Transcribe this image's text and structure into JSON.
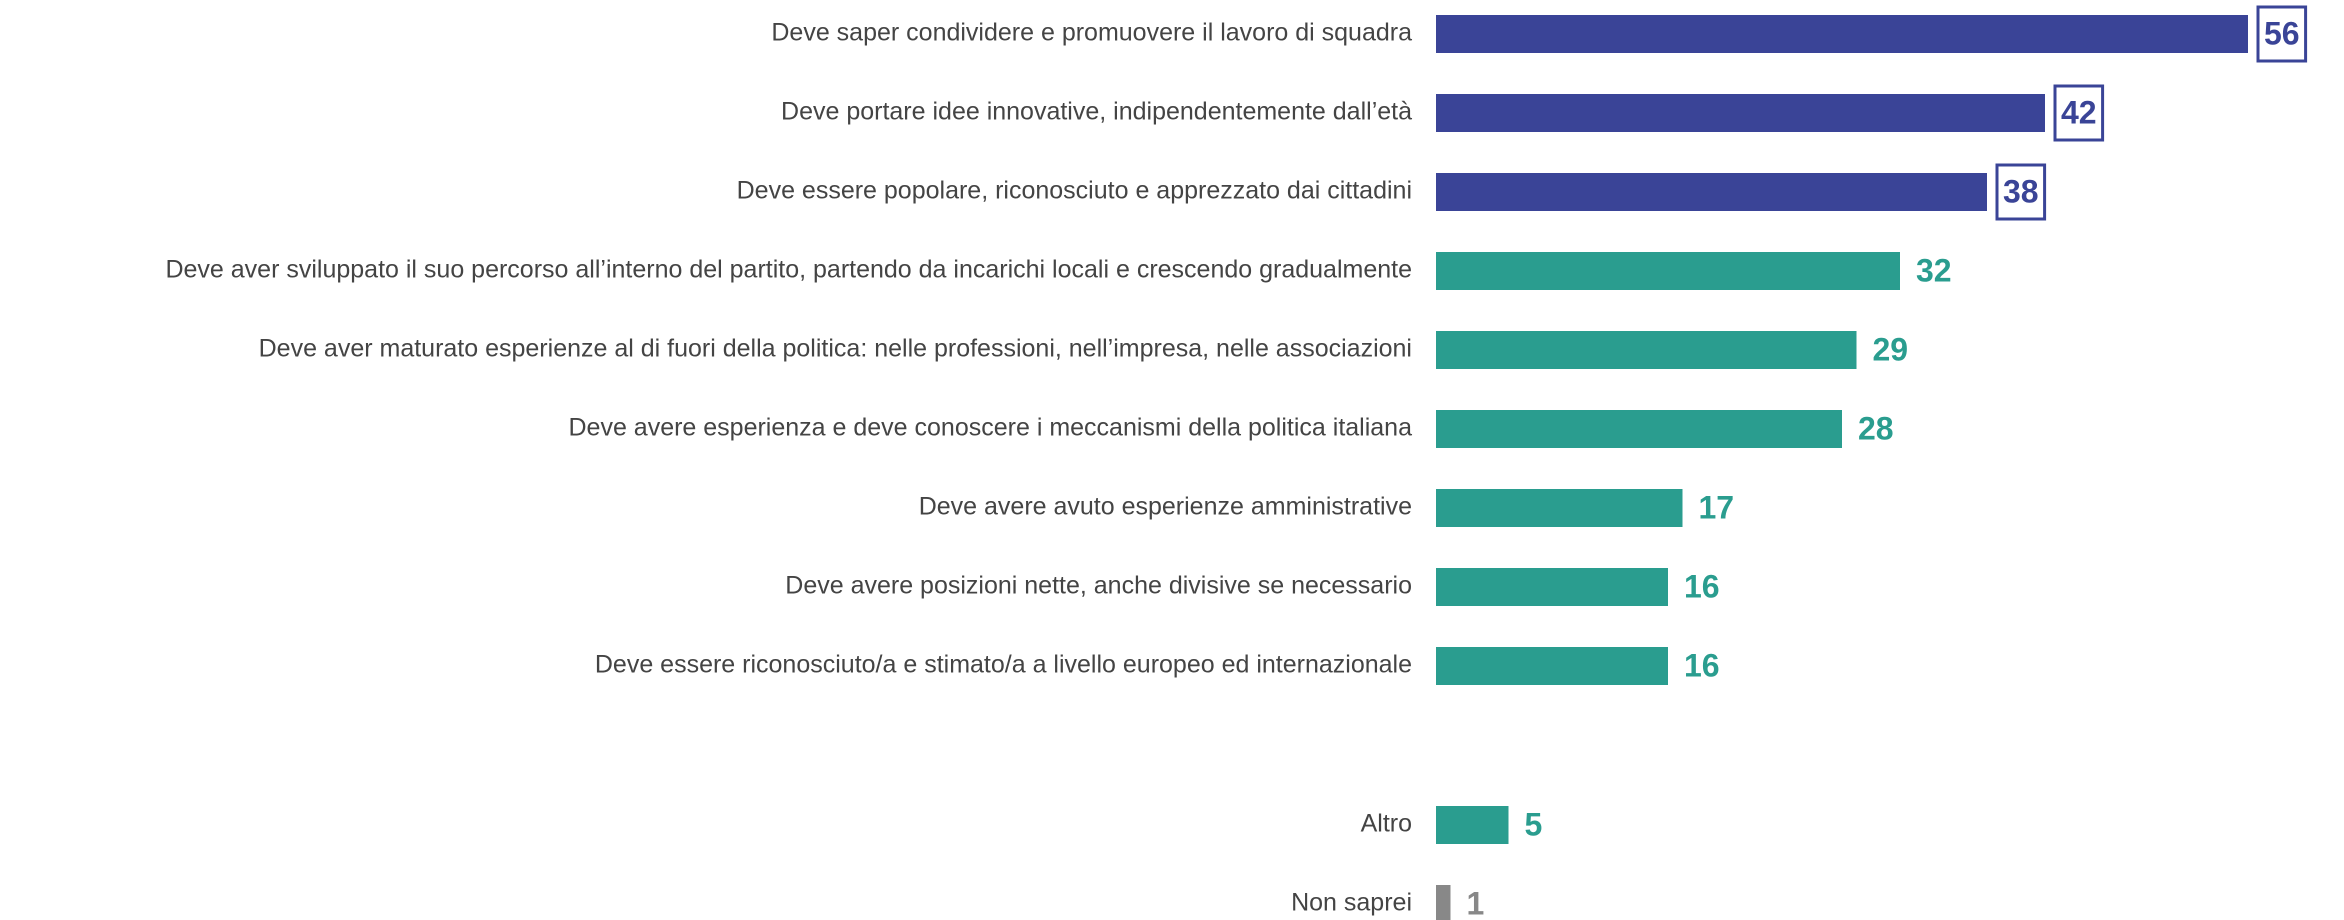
{
  "chart_data": {
    "type": "bar",
    "orientation": "horizontal",
    "categories": [
      "Deve saper condividere e promuovere il lavoro di squadra",
      "Deve portare idee innovative, indipendentemente dall’età",
      "Deve essere popolare, riconosciuto e apprezzato dai cittadini",
      "Deve aver sviluppato il suo percorso all’interno del partito, partendo da incarichi locali e crescendo gradualmente",
      "Deve aver maturato esperienze al di fuori della politica: nelle professioni, nell’impresa, nelle associazioni",
      "Deve avere esperienza e deve conoscere i meccanismi della politica italiana",
      "Deve avere avuto esperienze amministrative",
      "Deve avere posizioni nette, anche divisive se necessario",
      "Deve essere riconosciuto/a e stimato/a a livello europeo ed internazionale",
      "Altro",
      "Non saprei"
    ],
    "values": [
      56,
      42,
      38,
      32,
      29,
      28,
      17,
      16,
      16,
      5,
      1
    ],
    "colors": [
      "#3a4497",
      "#3a4497",
      "#3a4497",
      "#2a9d8f",
      "#2a9d8f",
      "#2a9d8f",
      "#2a9d8f",
      "#2a9d8f",
      "#2a9d8f",
      "#2a9d8f",
      "#888888"
    ],
    "boxed_labels": [
      true,
      true,
      true,
      false,
      false,
      false,
      false,
      false,
      false,
      false,
      false
    ]
  }
}
